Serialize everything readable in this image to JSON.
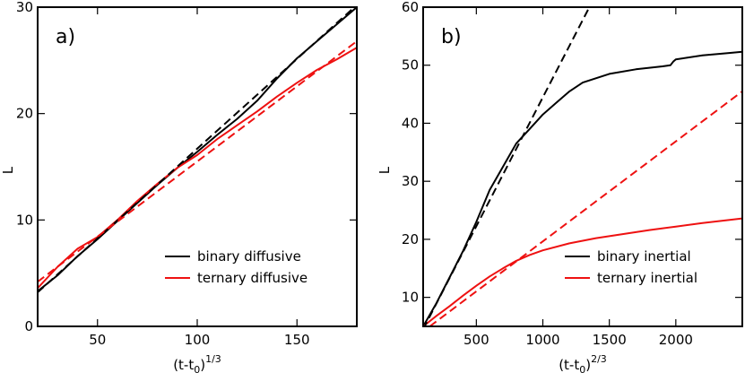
{
  "chart_data": [
    {
      "type": "line",
      "panel_label": "a)",
      "xlabel": "(t-t0)1/3",
      "xlabel_parts": {
        "base": "(t-t",
        "sub": "0",
        "close": ")",
        "sup": "1/3"
      },
      "ylabel": "L",
      "xlim": [
        20,
        180
      ],
      "ylim": [
        0,
        30
      ],
      "xticks": [
        50,
        100,
        150
      ],
      "yticks": [
        0,
        10,
        20,
        30
      ],
      "legend_position": "bottom-right",
      "grid": false,
      "series": [
        {
          "name": "binary diffusive",
          "color": "#000000",
          "style": "solid",
          "x": [
            20,
            30,
            40,
            50,
            60,
            70,
            80,
            90,
            100,
            110,
            120,
            130,
            140,
            150,
            160,
            170,
            180
          ],
          "y": [
            3.3,
            4.8,
            6.6,
            8.2,
            9.9,
            11.6,
            13.3,
            14.9,
            16.4,
            18.0,
            19.5,
            21.2,
            23.3,
            25.2,
            26.8,
            28.4,
            30.0
          ]
        },
        {
          "name": "ternary diffusive",
          "color": "#ee1111",
          "style": "solid",
          "x": [
            20,
            30,
            40,
            50,
            60,
            70,
            80,
            90,
            100,
            110,
            120,
            130,
            140,
            150,
            160,
            170,
            180
          ],
          "y": [
            3.6,
            5.6,
            7.3,
            8.4,
            10.0,
            11.8,
            13.4,
            14.9,
            16.1,
            17.6,
            18.9,
            20.2,
            21.6,
            22.9,
            24.1,
            25.1,
            26.2
          ]
        },
        {
          "name": "",
          "color": "#000000",
          "style": "dashed",
          "x": [
            20,
            180
          ],
          "y": [
            3.2,
            30.2
          ]
        },
        {
          "name": "",
          "color": "#ee1111",
          "style": "dashed",
          "x": [
            20,
            180
          ],
          "y": [
            4.2,
            26.8
          ]
        }
      ]
    },
    {
      "type": "line",
      "panel_label": "b)",
      "xlabel": "(t-t0)2/3",
      "xlabel_parts": {
        "base": "(t-t",
        "sub": "0",
        "close": ")",
        "sup": "2/3"
      },
      "ylabel": "L",
      "xlim": [
        100,
        2500
      ],
      "ylim": [
        5,
        60
      ],
      "xticks": [
        500,
        1000,
        1500,
        2000
      ],
      "yticks": [
        10,
        20,
        30,
        40,
        50,
        60
      ],
      "legend_position": "bottom-right",
      "grid": false,
      "series": [
        {
          "name": "binary inertial",
          "color": "#000000",
          "style": "solid",
          "x": [
            100,
            200,
            300,
            400,
            500,
            600,
            700,
            800,
            900,
            1000,
            1100,
            1200,
            1300,
            1500,
            1700,
            1900,
            1960,
            1980,
            2000,
            2200,
            2400,
            2500
          ],
          "y": [
            5.0,
            9.0,
            13.5,
            18.0,
            23.0,
            28.5,
            32.5,
            36.5,
            39.0,
            41.5,
            43.5,
            45.5,
            47.0,
            48.5,
            49.3,
            49.8,
            50.0,
            50.6,
            51.0,
            51.7,
            52.1,
            52.3
          ]
        },
        {
          "name": "ternary inertial",
          "color": "#ee1111",
          "style": "solid",
          "x": [
            100,
            200,
            300,
            400,
            500,
            600,
            700,
            800,
            900,
            1000,
            1200,
            1400,
            1600,
            1800,
            2000,
            2200,
            2500
          ],
          "y": [
            5.0,
            6.8,
            8.5,
            10.3,
            12.0,
            13.6,
            15.0,
            16.3,
            17.3,
            18.1,
            19.3,
            20.2,
            20.9,
            21.6,
            22.2,
            22.8,
            23.6
          ]
        },
        {
          "name": "",
          "color": "#000000",
          "style": "dashed",
          "x": [
            100,
            1350
          ],
          "y": [
            4.5,
            60.0
          ]
        },
        {
          "name": "",
          "color": "#ee1111",
          "style": "dashed",
          "x": [
            150,
            2500
          ],
          "y": [
            5.0,
            45.5
          ]
        }
      ]
    }
  ]
}
